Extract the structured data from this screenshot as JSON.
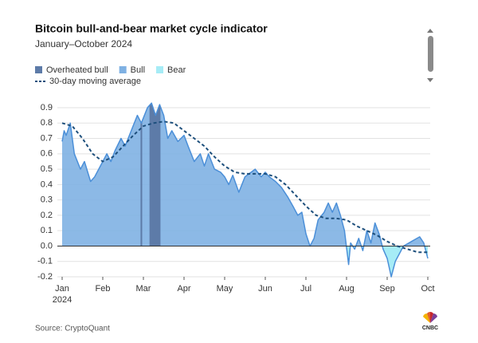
{
  "chart_data": {
    "type": "area",
    "title": "Bitcoin bull-and-bear market cycle indicator",
    "subtitle": "January–October 2024",
    "source": "Source: CryptoQuant",
    "logo_text": "CNBC",
    "regimes": [
      {
        "name": "Overheated bull",
        "color": "#5d7ba8"
      },
      {
        "name": "Bull",
        "color": "#7fb1e3"
      },
      {
        "name": "Bear",
        "color": "#a6ecf6"
      }
    ],
    "line_color": "#4b8fd8",
    "overheated_ranges": [
      [
        1.93,
        1.97
      ],
      [
        2.15,
        2.42
      ]
    ],
    "indicator": {
      "x": [
        0,
        0.05,
        0.1,
        0.2,
        0.3,
        0.45,
        0.55,
        0.7,
        0.8,
        1.0,
        1.1,
        1.2,
        1.3,
        1.45,
        1.55,
        1.7,
        1.85,
        1.95,
        2.1,
        2.2,
        2.3,
        2.4,
        2.5,
        2.6,
        2.7,
        2.85,
        3.0,
        3.1,
        3.25,
        3.4,
        3.5,
        3.6,
        3.75,
        3.9,
        4.0,
        4.1,
        4.2,
        4.35,
        4.5,
        4.6,
        4.75,
        4.9,
        5.0,
        5.1,
        5.25,
        5.4,
        5.55,
        5.7,
        5.8,
        5.9,
        6.0,
        6.1,
        6.2,
        6.3,
        6.45,
        6.55,
        6.65,
        6.75,
        6.85,
        6.95,
        7.05,
        7.1,
        7.2,
        7.3,
        7.4,
        7.5,
        7.6,
        7.7,
        7.8,
        7.9,
        8.0,
        8.1,
        8.2,
        8.3,
        8.4,
        8.6,
        8.8,
        8.9,
        9.0
      ],
      "values": [
        0.68,
        0.75,
        0.72,
        0.8,
        0.6,
        0.5,
        0.55,
        0.42,
        0.45,
        0.55,
        0.6,
        0.55,
        0.62,
        0.7,
        0.65,
        0.75,
        0.85,
        0.8,
        0.9,
        0.93,
        0.85,
        0.92,
        0.85,
        0.7,
        0.75,
        0.68,
        0.72,
        0.65,
        0.55,
        0.6,
        0.52,
        0.6,
        0.5,
        0.48,
        0.45,
        0.4,
        0.46,
        0.35,
        0.45,
        0.47,
        0.5,
        0.45,
        0.48,
        0.45,
        0.42,
        0.38,
        0.32,
        0.25,
        0.2,
        0.22,
        0.08,
        0.0,
        0.05,
        0.17,
        0.22,
        0.28,
        0.22,
        0.28,
        0.2,
        0.1,
        -0.12,
        0.02,
        -0.02,
        0.05,
        -0.03,
        0.1,
        0.02,
        0.15,
        0.08,
        -0.02,
        -0.08,
        -0.2,
        -0.1,
        -0.05,
        0.0,
        0.03,
        0.06,
        0.02,
        -0.08
      ]
    },
    "moving_average": {
      "name": "30-day moving average",
      "color": "#1d4f7c",
      "x": [
        0,
        0.25,
        0.5,
        0.75,
        1.0,
        1.25,
        1.5,
        1.75,
        2.0,
        2.25,
        2.5,
        2.75,
        3.0,
        3.25,
        3.5,
        3.75,
        4.0,
        4.25,
        4.5,
        4.75,
        5.0,
        5.25,
        5.5,
        5.75,
        6.0,
        6.25,
        6.5,
        6.75,
        7.0,
        7.25,
        7.5,
        7.75,
        8.0,
        8.25,
        8.5,
        8.75,
        9.0
      ],
      "values": [
        0.8,
        0.78,
        0.7,
        0.6,
        0.55,
        0.58,
        0.65,
        0.72,
        0.78,
        0.8,
        0.81,
        0.8,
        0.75,
        0.7,
        0.65,
        0.58,
        0.52,
        0.48,
        0.47,
        0.47,
        0.47,
        0.45,
        0.4,
        0.33,
        0.26,
        0.2,
        0.18,
        0.18,
        0.17,
        0.13,
        0.1,
        0.07,
        0.03,
        0.0,
        -0.02,
        -0.04,
        -0.04
      ]
    },
    "xlim": [
      0,
      9
    ],
    "xticks": [
      {
        "value": 0,
        "label": "Jan"
      },
      {
        "value": 1,
        "label": "Feb"
      },
      {
        "value": 2,
        "label": "Mar"
      },
      {
        "value": 3,
        "label": "Apr"
      },
      {
        "value": 4,
        "label": "May"
      },
      {
        "value": 5,
        "label": "Jun"
      },
      {
        "value": 6,
        "label": "Jul"
      },
      {
        "value": 7,
        "label": "Aug"
      },
      {
        "value": 8,
        "label": "Sep"
      },
      {
        "value": 9,
        "label": "Oct"
      }
    ],
    "x_year_label": "2024",
    "ylim": [
      -0.2,
      0.9
    ],
    "yticks": [
      0.9,
      0.8,
      0.7,
      0.6,
      0.5,
      0.4,
      0.3,
      0.2,
      0.1,
      {
        "value": 0,
        "label": "0.0"
      },
      -0.1,
      -0.2
    ],
    "grid": true
  }
}
